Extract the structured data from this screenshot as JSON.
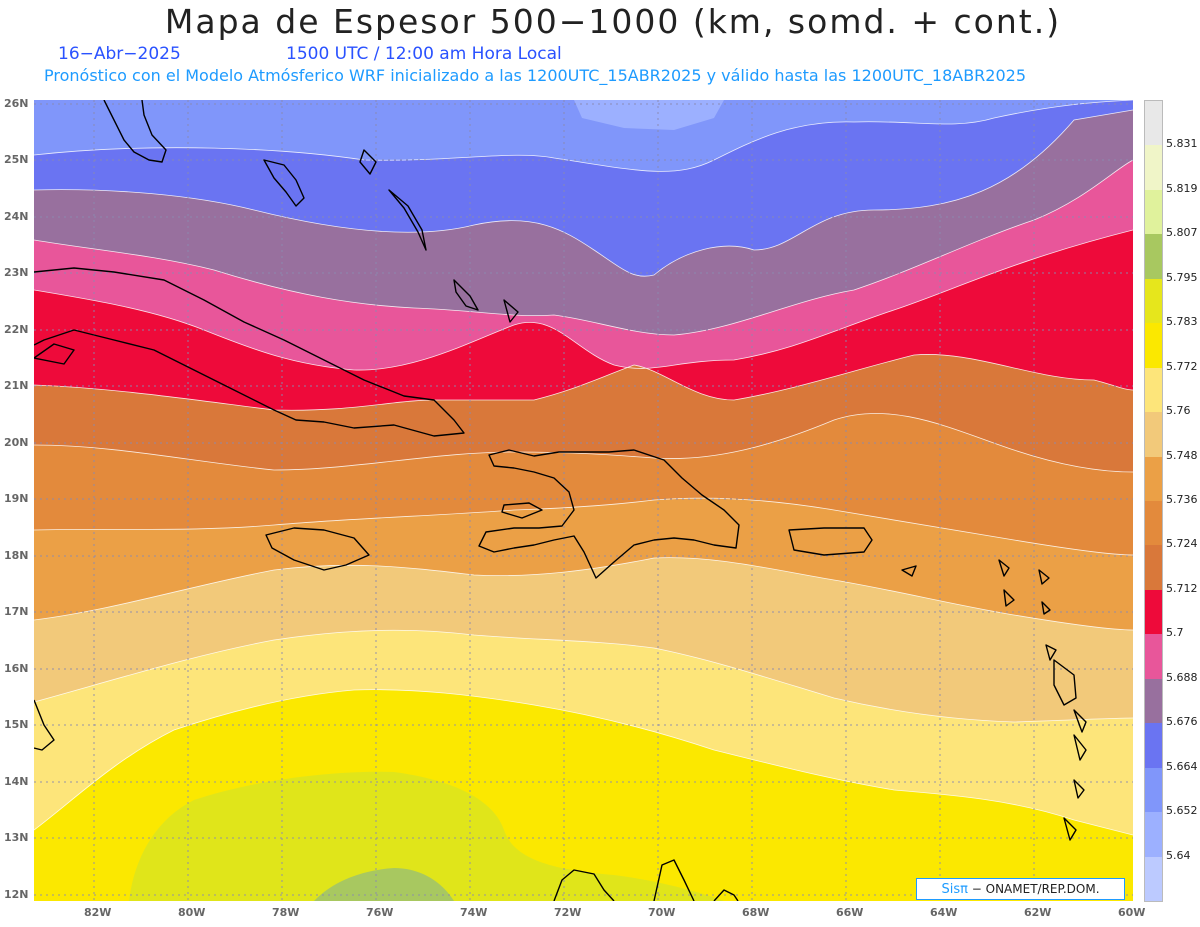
{
  "header": {
    "title": "Mapa de Espesor 500−1000 (km, somd. + cont.)",
    "date": "16−Abr−2025",
    "time": "1500 UTC / 12:00 am Hora Local",
    "info": "Pronóstico con el Modelo Atmósferico WRF inicializado a las 1200UTC_15ABR2025 y válido hasta las  1200UTC_18ABR2025"
  },
  "axes": {
    "lat_labels": [
      "26N",
      "25N",
      "24N",
      "23N",
      "22N",
      "21N",
      "20N",
      "19N",
      "18N",
      "17N",
      "16N",
      "15N",
      "14N",
      "13N",
      "12N"
    ],
    "lon_labels": [
      "82W",
      "80W",
      "78W",
      "76W",
      "74W",
      "72W",
      "70W",
      "68W",
      "66W",
      "64W",
      "62W",
      "60W"
    ]
  },
  "colorbar": {
    "labels": [
      "5.831",
      "5.819",
      "5.807",
      "5.795",
      "5.783",
      "5.772",
      "5.76",
      "5.748",
      "5.736",
      "5.724",
      "5.712",
      "5.7",
      "5.688",
      "5.676",
      "5.664",
      "5.652",
      "5.64"
    ],
    "colors": [
      "#e8e8e8",
      "#f0f5c8",
      "#e0f29c",
      "#a8c860",
      "#e6e61c",
      "#fbe800",
      "#fde57a",
      "#f2c97a",
      "#eba046",
      "#e38a3c",
      "#d9783a",
      "#ee0a3a",
      "#e8569a",
      "#98709e",
      "#6a74f2",
      "#8096fa",
      "#9cb0ff",
      "#bccaff"
    ]
  },
  "credit": {
    "logo": "Sisπ",
    "text": "− ONAMET/REP.DOM."
  },
  "map_colors": {
    "c5652": "#8096fa",
    "c5640": "#9cb0ff",
    "c5664": "#6a74f2",
    "c5676": "#98709e",
    "c5688": "#e8569a",
    "c5700": "#ee0a3a",
    "c5712": "#d9783a",
    "c5724": "#e38a3c",
    "c5736": "#eba046",
    "c5748": "#f2c97a",
    "c5760": "#fde57a",
    "c5772": "#fbe800",
    "c5783": "#e6e61c",
    "c5795": "#a8c860"
  }
}
